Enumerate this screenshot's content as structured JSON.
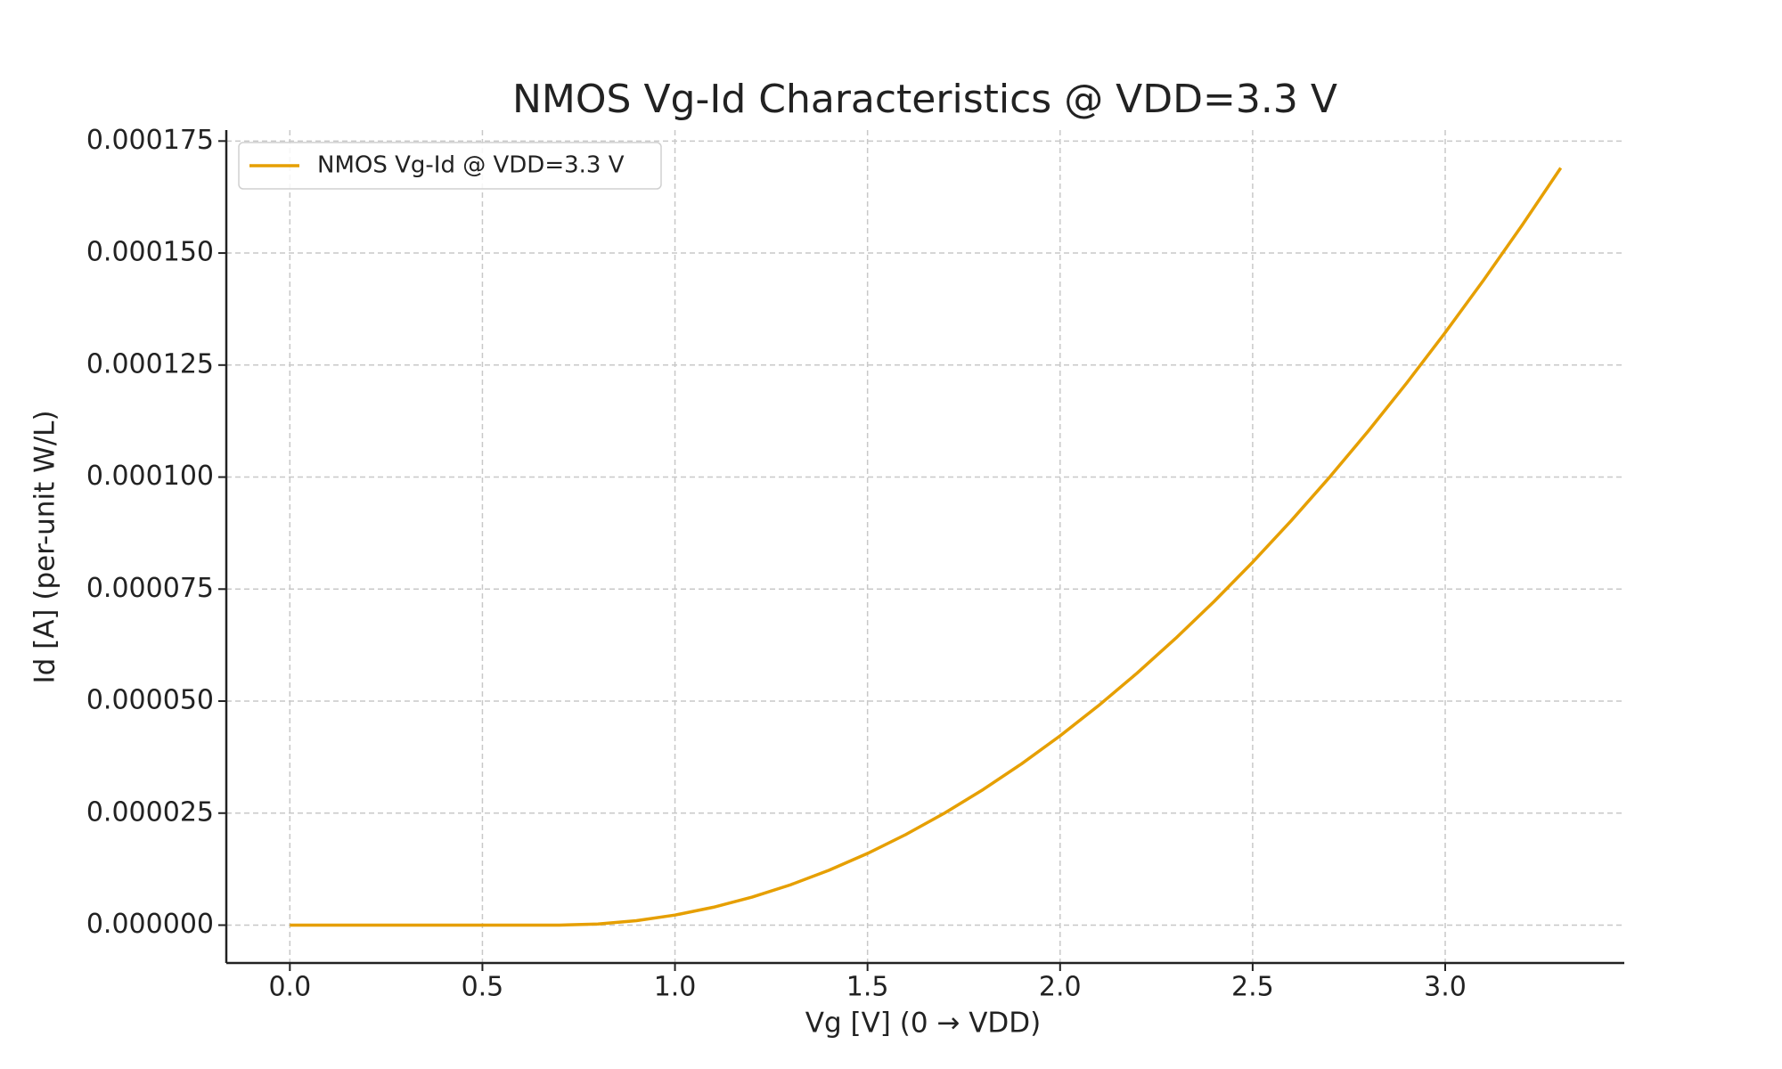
{
  "chart_data": {
    "type": "line",
    "title": "NMOS Vg-Id Characteristics @ VDD=3.3 V",
    "x_label": "Vg [V] (0 → VDD)",
    "y_label": "Id [A] (per-unit W/L)",
    "x": [
      0,
      0.1,
      0.2,
      0.3,
      0.4,
      0.5,
      0.6,
      0.7,
      0.8,
      0.9,
      1.0,
      1.1,
      1.2,
      1.3,
      1.4,
      1.5,
      1.6,
      1.7,
      1.8,
      1.9,
      2.0,
      2.1,
      2.2,
      2.3,
      2.4,
      2.5,
      2.6,
      2.7,
      2.8,
      2.9,
      3.0,
      3.1,
      3.2,
      3.3
    ],
    "series": [
      {
        "name": "NMOS Vg-Id @ VDD=3.3 V",
        "color": "#e69f00",
        "values": [
          0,
          0,
          0,
          0,
          0,
          0,
          0,
          0,
          2.5e-07,
          1e-06,
          2.25e-06,
          4e-06,
          6.25e-06,
          9e-06,
          1.225e-05,
          1.6e-05,
          2.025e-05,
          2.5e-05,
          3.025e-05,
          3.6e-05,
          4.225e-05,
          4.9e-05,
          5.625e-05,
          6.4e-05,
          7.225e-05,
          8.1e-05,
          9.025e-05,
          0.0001,
          0.00011025,
          0.000121,
          0.00013225,
          0.000144,
          0.00015625,
          0.000169
        ]
      }
    ],
    "xlim": [
      -0.165,
      3.465
    ],
    "ylim": [
      -8.45e-06,
      0.00017745
    ],
    "xticks": [
      {
        "value": 0,
        "label": "0.0"
      },
      0.5,
      {
        "value": 1,
        "label": "1.0"
      },
      1.5,
      {
        "value": 2,
        "label": "2.0"
      },
      2.5,
      {
        "value": 3,
        "label": "3.0"
      }
    ],
    "yticks": [
      {
        "value": 0,
        "label": "0.000000"
      },
      {
        "value": 2.5e-05,
        "label": "0.000025"
      },
      {
        "value": 5e-05,
        "label": "0.000050"
      },
      {
        "value": 7.5e-05,
        "label": "0.000075"
      },
      {
        "value": 0.0001,
        "label": "0.000100"
      },
      {
        "value": 0.000125,
        "label": "0.000125"
      },
      {
        "value": 0.00015,
        "label": "0.000150"
      },
      {
        "value": 0.000175,
        "label": "0.000175"
      }
    ],
    "grid": true,
    "legend": "upper-left"
  }
}
